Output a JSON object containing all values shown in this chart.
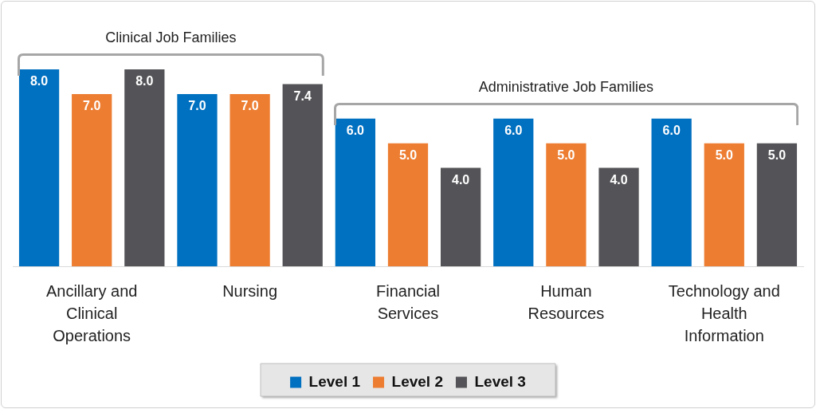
{
  "chart_data": {
    "type": "bar",
    "categories": [
      "Ancillary and Clinical Operations",
      "Nursing",
      "Financial Services",
      "Human Resources",
      "Technology and Health Information"
    ],
    "series": [
      {
        "name": "Level 1",
        "color": "#0070c0",
        "values": [
          8,
          7,
          6,
          6,
          6
        ],
        "value_labels": [
          "8.0",
          "7.0",
          "6.0",
          "6.0",
          "6.0"
        ]
      },
      {
        "name": "Level 2",
        "color": "#ed7d31",
        "values": [
          7,
          7,
          5,
          5,
          5
        ],
        "value_labels": [
          "7.0",
          "7.0",
          "5.0",
          "5.0",
          "5.0"
        ]
      },
      {
        "name": "Level 3",
        "color": "#545458",
        "values": [
          8,
          7.4,
          4,
          4,
          5
        ],
        "value_labels": [
          "8.0",
          "7.4",
          "4.0",
          "4.0",
          "5.0"
        ]
      }
    ],
    "annotations": [
      "Clinical Job Families",
      "Administrative Job Families"
    ],
    "legend": "bottom",
    "grid": false
  }
}
